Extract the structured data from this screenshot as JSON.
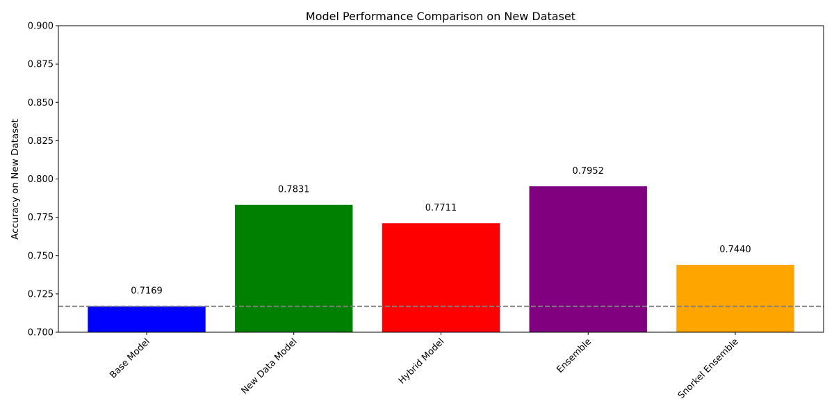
{
  "chart_data": {
    "type": "bar",
    "title": "Model Performance Comparison on New Dataset",
    "xlabel": "",
    "ylabel": "Accuracy on New Dataset",
    "categories": [
      "Base Model",
      "New Data Model",
      "Hybrid Model",
      "Ensemble",
      "Snorkel Ensemble"
    ],
    "values": [
      0.7169,
      0.7831,
      0.7711,
      0.7952,
      0.744
    ],
    "value_labels": [
      "0.7169",
      "0.7831",
      "0.7711",
      "0.7952",
      "0.7440"
    ],
    "colors": [
      "#0000ff",
      "#008000",
      "#ff0000",
      "#800080",
      "#ffa500"
    ],
    "ylim": [
      0.7,
      0.9
    ],
    "yticks": [
      0.7,
      0.725,
      0.75,
      0.775,
      0.8,
      0.825,
      0.85,
      0.875,
      0.9
    ],
    "ytick_labels": [
      "0.700",
      "0.725",
      "0.750",
      "0.775",
      "0.800",
      "0.825",
      "0.850",
      "0.875",
      "0.900"
    ],
    "xtick_rotation_deg": 45,
    "reference_line": {
      "value": 0.7169,
      "style": "dashed",
      "color": "#808080"
    },
    "grid": false,
    "legend": false
  }
}
